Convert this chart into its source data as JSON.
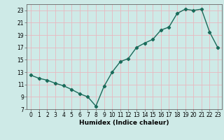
{
  "x": [
    0,
    1,
    2,
    3,
    4,
    5,
    6,
    7,
    8,
    9,
    10,
    11,
    12,
    13,
    14,
    15,
    16,
    17,
    18,
    19,
    20,
    21,
    22,
    23
  ],
  "y": [
    12.5,
    12.0,
    11.7,
    11.2,
    10.8,
    10.2,
    9.5,
    9.0,
    7.5,
    10.7,
    13.0,
    14.7,
    15.2,
    17.0,
    17.7,
    18.3,
    19.8,
    20.3,
    22.5,
    23.2,
    23.0,
    23.2,
    19.5,
    17.0
  ],
  "line_color": "#1a6b5a",
  "marker": "D",
  "markersize": 2.2,
  "linewidth": 1.0,
  "bg_color": "#ceeae7",
  "grid_color": "#e8b8c0",
  "xlabel": "Humidex (Indice chaleur)",
  "xlim": [
    -0.5,
    23.5
  ],
  "ylim": [
    7,
    24
  ],
  "yticks": [
    7,
    9,
    11,
    13,
    15,
    17,
    19,
    21,
    23
  ],
  "xticks": [
    0,
    1,
    2,
    3,
    4,
    5,
    6,
    7,
    8,
    9,
    10,
    11,
    12,
    13,
    14,
    15,
    16,
    17,
    18,
    19,
    20,
    21,
    22,
    23
  ],
  "xlabel_fontsize": 6.5,
  "tick_fontsize": 5.5
}
